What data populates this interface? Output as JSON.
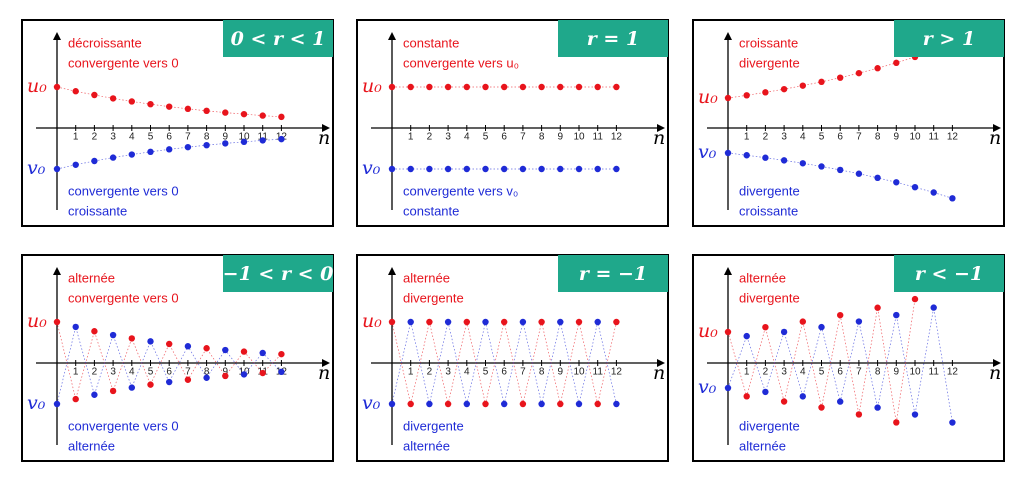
{
  "u_label": "u₀",
  "v_label": "v₀",
  "axis_label": "n",
  "ticks": [
    "1",
    "2",
    "3",
    "4",
    "5",
    "6",
    "7",
    "8",
    "9",
    "10",
    "11",
    "12"
  ],
  "panels": [
    {
      "badge": "0 < r < 1",
      "red_text": [
        "décroissante",
        "convergente vers 0"
      ],
      "blue_text": [
        "convergente vers 0",
        "croissante"
      ]
    },
    {
      "badge": "r = 1",
      "red_text": [
        "constante",
        "convergente vers u₀"
      ],
      "blue_text": [
        "convergente vers v₀",
        "constante"
      ]
    },
    {
      "badge": "r > 1",
      "red_text": [
        "croissante",
        "divergente"
      ],
      "blue_text": [
        "divergente",
        "croissante"
      ]
    },
    {
      "badge": "−1 < r < 0",
      "red_text": [
        "alternée",
        "convergente vers 0"
      ],
      "blue_text": [
        "convergente vers 0",
        "alternée"
      ]
    },
    {
      "badge": "r = −1",
      "red_text": [
        "alternée",
        "divergente"
      ],
      "blue_text": [
        "divergente",
        "alternée"
      ]
    },
    {
      "badge": "r < −1",
      "red_text": [
        "alternée",
        "divergente"
      ],
      "blue_text": [
        "divergente",
        "alternée"
      ]
    }
  ]
}
